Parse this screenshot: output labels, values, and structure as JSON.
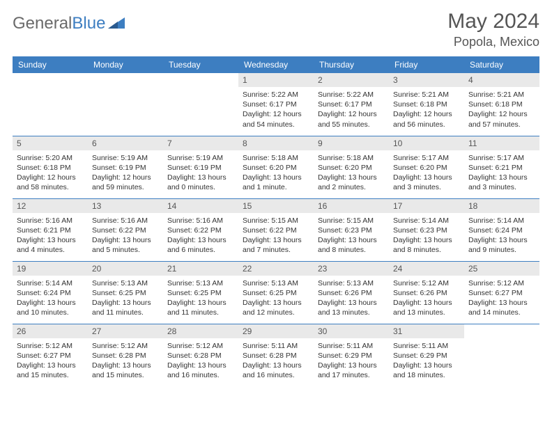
{
  "brand": {
    "part1": "General",
    "part2": "Blue"
  },
  "title": "May 2024",
  "location": "Popola, Mexico",
  "colors": {
    "header_bg": "#3d7ec1",
    "header_text": "#ffffff",
    "daynum_bg": "#e9e9e9",
    "row_border": "#3d7ec1",
    "logo_gray": "#6a6a6a",
    "logo_blue": "#3d7ec1"
  },
  "weekdays": [
    "Sunday",
    "Monday",
    "Tuesday",
    "Wednesday",
    "Thursday",
    "Friday",
    "Saturday"
  ],
  "weeks": [
    [
      null,
      null,
      null,
      {
        "n": "1",
        "sr": "5:22 AM",
        "ss": "6:17 PM",
        "dl": "12 hours and 54 minutes."
      },
      {
        "n": "2",
        "sr": "5:22 AM",
        "ss": "6:17 PM",
        "dl": "12 hours and 55 minutes."
      },
      {
        "n": "3",
        "sr": "5:21 AM",
        "ss": "6:18 PM",
        "dl": "12 hours and 56 minutes."
      },
      {
        "n": "4",
        "sr": "5:21 AM",
        "ss": "6:18 PM",
        "dl": "12 hours and 57 minutes."
      }
    ],
    [
      {
        "n": "5",
        "sr": "5:20 AM",
        "ss": "6:18 PM",
        "dl": "12 hours and 58 minutes."
      },
      {
        "n": "6",
        "sr": "5:19 AM",
        "ss": "6:19 PM",
        "dl": "12 hours and 59 minutes."
      },
      {
        "n": "7",
        "sr": "5:19 AM",
        "ss": "6:19 PM",
        "dl": "13 hours and 0 minutes."
      },
      {
        "n": "8",
        "sr": "5:18 AM",
        "ss": "6:20 PM",
        "dl": "13 hours and 1 minute."
      },
      {
        "n": "9",
        "sr": "5:18 AM",
        "ss": "6:20 PM",
        "dl": "13 hours and 2 minutes."
      },
      {
        "n": "10",
        "sr": "5:17 AM",
        "ss": "6:20 PM",
        "dl": "13 hours and 3 minutes."
      },
      {
        "n": "11",
        "sr": "5:17 AM",
        "ss": "6:21 PM",
        "dl": "13 hours and 3 minutes."
      }
    ],
    [
      {
        "n": "12",
        "sr": "5:16 AM",
        "ss": "6:21 PM",
        "dl": "13 hours and 4 minutes."
      },
      {
        "n": "13",
        "sr": "5:16 AM",
        "ss": "6:22 PM",
        "dl": "13 hours and 5 minutes."
      },
      {
        "n": "14",
        "sr": "5:16 AM",
        "ss": "6:22 PM",
        "dl": "13 hours and 6 minutes."
      },
      {
        "n": "15",
        "sr": "5:15 AM",
        "ss": "6:22 PM",
        "dl": "13 hours and 7 minutes."
      },
      {
        "n": "16",
        "sr": "5:15 AM",
        "ss": "6:23 PM",
        "dl": "13 hours and 8 minutes."
      },
      {
        "n": "17",
        "sr": "5:14 AM",
        "ss": "6:23 PM",
        "dl": "13 hours and 8 minutes."
      },
      {
        "n": "18",
        "sr": "5:14 AM",
        "ss": "6:24 PM",
        "dl": "13 hours and 9 minutes."
      }
    ],
    [
      {
        "n": "19",
        "sr": "5:14 AM",
        "ss": "6:24 PM",
        "dl": "13 hours and 10 minutes."
      },
      {
        "n": "20",
        "sr": "5:13 AM",
        "ss": "6:25 PM",
        "dl": "13 hours and 11 minutes."
      },
      {
        "n": "21",
        "sr": "5:13 AM",
        "ss": "6:25 PM",
        "dl": "13 hours and 11 minutes."
      },
      {
        "n": "22",
        "sr": "5:13 AM",
        "ss": "6:25 PM",
        "dl": "13 hours and 12 minutes."
      },
      {
        "n": "23",
        "sr": "5:13 AM",
        "ss": "6:26 PM",
        "dl": "13 hours and 13 minutes."
      },
      {
        "n": "24",
        "sr": "5:12 AM",
        "ss": "6:26 PM",
        "dl": "13 hours and 13 minutes."
      },
      {
        "n": "25",
        "sr": "5:12 AM",
        "ss": "6:27 PM",
        "dl": "13 hours and 14 minutes."
      }
    ],
    [
      {
        "n": "26",
        "sr": "5:12 AM",
        "ss": "6:27 PM",
        "dl": "13 hours and 15 minutes."
      },
      {
        "n": "27",
        "sr": "5:12 AM",
        "ss": "6:28 PM",
        "dl": "13 hours and 15 minutes."
      },
      {
        "n": "28",
        "sr": "5:12 AM",
        "ss": "6:28 PM",
        "dl": "13 hours and 16 minutes."
      },
      {
        "n": "29",
        "sr": "5:11 AM",
        "ss": "6:28 PM",
        "dl": "13 hours and 16 minutes."
      },
      {
        "n": "30",
        "sr": "5:11 AM",
        "ss": "6:29 PM",
        "dl": "13 hours and 17 minutes."
      },
      {
        "n": "31",
        "sr": "5:11 AM",
        "ss": "6:29 PM",
        "dl": "13 hours and 18 minutes."
      },
      null
    ]
  ],
  "labels": {
    "sunrise": "Sunrise:",
    "sunset": "Sunset:",
    "daylight": "Daylight:"
  }
}
